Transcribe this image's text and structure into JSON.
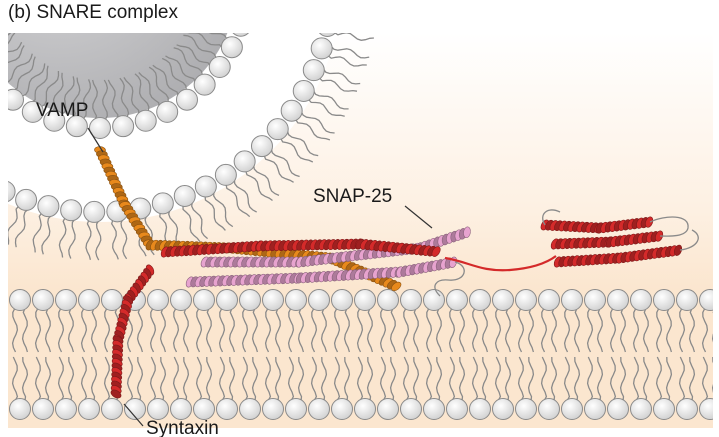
{
  "figure": {
    "caption": "(b) SNARE complex"
  },
  "labels": {
    "vamp": "VAMP",
    "snap25": "SNAP-25",
    "syntaxin": "Syntaxin"
  },
  "colors": {
    "background_top": "#ffffff",
    "background_glow": "#fbe8d2",
    "vesicle_interior": "#bfbfc1",
    "lipid_head": "#e9e9e9",
    "lipid_outline": "#8a8a8a",
    "vamp": "#e8891c",
    "syntaxin": "#d42a2a",
    "snap25": "#e7a3cf"
  }
}
